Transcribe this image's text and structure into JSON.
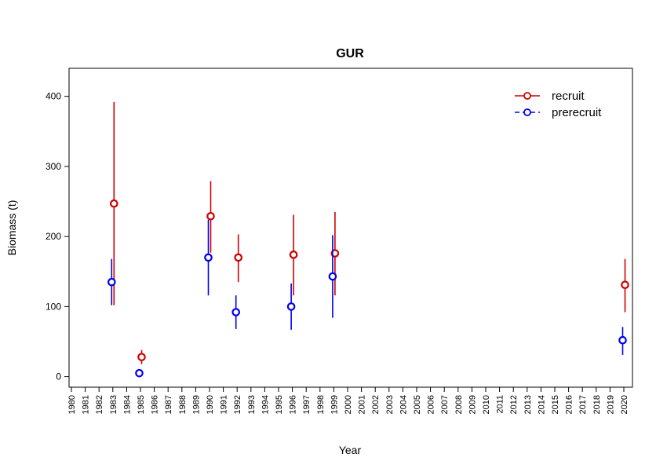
{
  "chart_data": {
    "type": "scatter",
    "title": "GUR",
    "xlabel": "Year",
    "ylabel": "Biomass (t)",
    "ylim": [
      -15,
      440
    ],
    "yticks": [
      0,
      100,
      200,
      300,
      400
    ],
    "categories": [
      "1980",
      "1981",
      "1982",
      "1983",
      "1984",
      "1985",
      "1986",
      "1987",
      "1988",
      "1989",
      "1990",
      "1991",
      "1992",
      "1993",
      "1994",
      "1995",
      "1996",
      "1997",
      "1998",
      "1999",
      "2000",
      "2001",
      "2002",
      "2003",
      "2004",
      "2005",
      "2006",
      "2007",
      "2008",
      "2009",
      "2010",
      "2011",
      "2012",
      "2013",
      "2014",
      "2015",
      "2016",
      "2017",
      "2018",
      "2019",
      "2020"
    ],
    "legend_position": "top-right",
    "series": [
      {
        "name": "recruit",
        "color": "#CC0000",
        "points": [
          {
            "x": "1983",
            "y": 247,
            "low": 102,
            "high": 392
          },
          {
            "x": "1985",
            "y": 28,
            "low": 18,
            "high": 38
          },
          {
            "x": "1990",
            "y": 229,
            "low": 177,
            "high": 279
          },
          {
            "x": "1992",
            "y": 170,
            "low": 135,
            "high": 203
          },
          {
            "x": "1996",
            "y": 174,
            "low": 116,
            "high": 231
          },
          {
            "x": "1999",
            "y": 176,
            "low": 116,
            "high": 235
          },
          {
            "x": "2020",
            "y": 131,
            "low": 92,
            "high": 168
          }
        ]
      },
      {
        "name": "prerecruit",
        "color": "#0000EE",
        "points": [
          {
            "x": "1983",
            "y": 135,
            "low": 102,
            "high": 168
          },
          {
            "x": "1985",
            "y": 5,
            "low": 3,
            "high": 7
          },
          {
            "x": "1990",
            "y": 170,
            "low": 116,
            "high": 224
          },
          {
            "x": "1992",
            "y": 92,
            "low": 68,
            "high": 116
          },
          {
            "x": "1996",
            "y": 100,
            "low": 67,
            "high": 133
          },
          {
            "x": "1999",
            "y": 143,
            "low": 84,
            "high": 202
          },
          {
            "x": "2020",
            "y": 52,
            "low": 31,
            "high": 71
          }
        ]
      }
    ]
  }
}
